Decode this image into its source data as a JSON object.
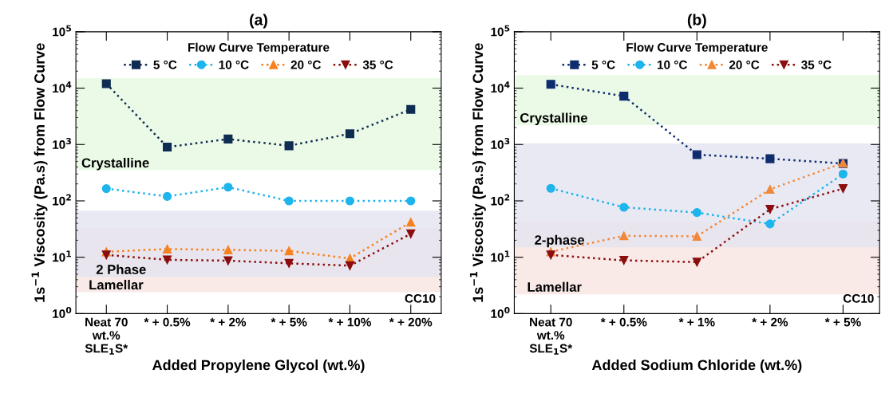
{
  "chart_data": [
    {
      "type": "line",
      "title": "(a)",
      "xlabel": "Added Propylene Glycol (wt.%)",
      "ylabel": "1s$^{−1}$ Viscosity (Pa.s) from Flow Curve",
      "legend_title": "Flow Curve Temperature",
      "categories": [
        "Neat 70\nwt.%\nSLE$_{1}$S*",
        "* + 0.5%",
        "* + 2%",
        "* + 5%",
        "* + 10%",
        "* + 20%"
      ],
      "series": [
        {
          "name": "5 °C",
          "color": "#0f2d52",
          "marker": "square",
          "values": [
            12000,
            900,
            1250,
            950,
            1550,
            4200
          ]
        },
        {
          "name": "10 °C",
          "color": "#1eb4ec",
          "marker": "circle",
          "values": [
            165,
            120,
            175,
            100,
            100,
            100
          ]
        },
        {
          "name": "20 °C",
          "color": "#f5821f",
          "marker": "triangle",
          "values": [
            12.5,
            14,
            13.5,
            13,
            9.5,
            42
          ]
        },
        {
          "name": "35 °C",
          "color": "#8b0e0e",
          "marker": "triangle_down",
          "values": [
            11,
            9,
            8.7,
            7.8,
            7.1,
            26
          ]
        }
      ],
      "line_style": "dotted",
      "log": "y",
      "grid": false,
      "legend": "top",
      "ylim": [
        1,
        100000
      ],
      "yticks": [
        {
          "value": 1,
          "label": "10$^{0}$"
        },
        {
          "value": 10,
          "label": "10$^{1}$"
        },
        {
          "value": 100,
          "label": "10$^{2}$"
        },
        {
          "value": 1000,
          "label": "10$^{3}$"
        },
        {
          "value": 10000,
          "label": "10$^{4}$"
        },
        {
          "value": 100000,
          "label": "10$^{5}$"
        }
      ],
      "bands": [
        {
          "axis": "y",
          "from": 350,
          "to": 15000,
          "label": "Crystalline",
          "color": "#e6f9e1"
        },
        {
          "axis": "y",
          "from": 2.4,
          "to": 33,
          "label": "Lamellar",
          "color": "#f8e3e1"
        },
        {
          "axis": "y",
          "from": 4.5,
          "to": 67,
          "label": "2 Phase",
          "color": "#e3e4f0"
        }
      ],
      "annotations": [
        "CC10"
      ]
    },
    {
      "type": "line",
      "title": "(b)",
      "xlabel": "Added Sodium Chloride (wt.%)",
      "ylabel": "1s$^{−1}$ Viscosity (Pa.s) from Flow Curve",
      "legend_title": "Flow Curve Temperature",
      "categories": [
        "Neat 70\nwt.%\nSLE$_{1}$S*",
        "* + 0.5%",
        "* + 1%",
        "* + 2%",
        "* + 5%"
      ],
      "series": [
        {
          "name": "5 °C",
          "color": "#0f2d6e",
          "marker": "square",
          "values": [
            11700,
            7200,
            660,
            560,
            460
          ]
        },
        {
          "name": "10 °C",
          "color": "#1eb4ec",
          "marker": "circle",
          "values": [
            167,
            77,
            62,
            39,
            300
          ]
        },
        {
          "name": "20 °C",
          "color": "#f0883a",
          "marker": "triangle",
          "values": [
            12.5,
            24,
            23.5,
            160,
            470
          ]
        },
        {
          "name": "35 °C",
          "color": "#8b0e0e",
          "marker": "triangle_down",
          "values": [
            11,
            8.8,
            8.2,
            71,
            165
          ]
        }
      ],
      "line_style": "dotted",
      "log": "y",
      "grid": false,
      "legend": "top",
      "ylim": [
        1,
        100000
      ],
      "yticks": [
        {
          "value": 1,
          "label": "10$^{0}$"
        },
        {
          "value": 10,
          "label": "10$^{1}$"
        },
        {
          "value": 100,
          "label": "10$^{2}$"
        },
        {
          "value": 1000,
          "label": "10$^{3}$"
        },
        {
          "value": 10000,
          "label": "10$^{4}$"
        },
        {
          "value": 100000,
          "label": "10$^{5}$"
        }
      ],
      "bands": [
        {
          "axis": "y",
          "from": 2200,
          "to": 17000,
          "label": "Crystalline",
          "color": "#e6f9e1"
        },
        {
          "axis": "y",
          "from": 2.2,
          "to": 43,
          "label": "Lamellar",
          "color": "#f8e3e1"
        },
        {
          "axis": "y",
          "from": 15,
          "to": 1050,
          "label": "2-phase",
          "color": "#e3e4f0"
        }
      ],
      "annotations": [
        "CC10"
      ]
    }
  ]
}
